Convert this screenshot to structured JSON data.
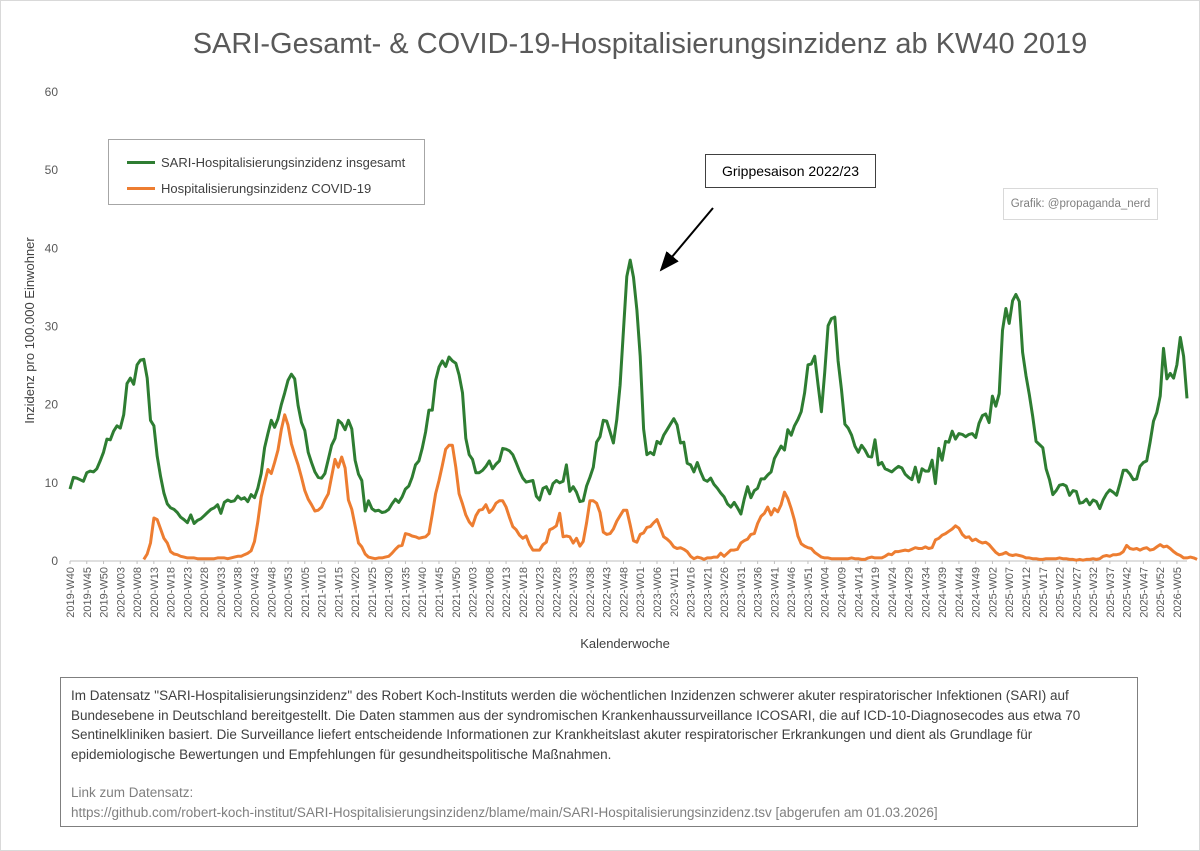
{
  "title": "SARI-Gesamt- & COVID-19-Hospitalisierungsinzidenz ab KW40 2019",
  "legend": {
    "items": [
      {
        "label": "SARI-Hospitalisierungsinzidenz insgesamt",
        "color": "#2e7d32"
      },
      {
        "label": "Hospitalisierungsinzidenz COVID-19",
        "color": "#ed7d31"
      }
    ]
  },
  "annotation": {
    "label": "Grippesaison 2022/23"
  },
  "credit": "Grafik: @propaganda_nerd",
  "description": {
    "text": "Im Datensatz \"SARI-Hospitalisierungsinzidenz\" des Robert Koch-Instituts werden die wöchentlichen Inzidenzen schwerer akuter respiratorischer Infektionen (SARI) auf Bundesebene in Deutschland bereitgestellt. Die Daten stammen aus der syndromischen Krankenhaussurveillance ICOSARI, die auf ICD-10-Diagnosecodes aus etwa 70 Sentinelkliniken basiert. Die Surveillance liefert entscheidende Informationen zur Krankheitslast akuter respiratorischer Erkrankungen und dient als Grundlage für epidemiologische Bewertungen und Empfehlungen für gesundheitspolitische Maßnahmen.",
    "link_label": "Link zum Datensatz:",
    "link": "https://github.com/robert-koch-institut/SARI-Hospitalisierungsinzidenz/blame/main/SARI-Hospitalisierungsinzidenz.tsv [abgerufen am 01.03.2026]"
  },
  "chart_data": {
    "type": "line",
    "title": "SARI-Gesamt- & COVID-19-Hospitalisierungsinzidenz ab KW40 2019",
    "xlabel": "Kalenderwoche",
    "ylabel": "Inzidenz pro 100.000 Einwohner",
    "ylim": [
      0,
      60
    ],
    "yticks": [
      0,
      10,
      20,
      30,
      40,
      50,
      60
    ],
    "x_start": "2019-W40",
    "x_end": "2026-W07",
    "x_tick_labels": [
      "2019-W40",
      "2019-W45",
      "2019-W50",
      "2020-W03",
      "2020-W08",
      "2020-W13",
      "2020-W18",
      "2020-W23",
      "2020-W28",
      "2020-W33",
      "2020-W38",
      "2020-W43",
      "2020-W48",
      "2020-W53",
      "2021-W05",
      "2021-W10",
      "2021-W15",
      "2021-W20",
      "2021-W25",
      "2021-W30",
      "2021-W35",
      "2021-W40",
      "2021-W45",
      "2021-W50",
      "2022-W03",
      "2022-W08",
      "2022-W13",
      "2022-W18",
      "2022-W23",
      "2022-W28",
      "2022-W33",
      "2022-W38",
      "2022-W43",
      "2022-W48",
      "2023-W01",
      "2023-W06",
      "2023-W11",
      "2023-W16",
      "2023-W21",
      "2023-W26",
      "2023-W31",
      "2023-W36",
      "2023-W41",
      "2023-W46",
      "2023-W51",
      "2024-W04",
      "2024-W09",
      "2024-W14",
      "2024-W19",
      "2024-W24",
      "2024-W29",
      "2024-W34",
      "2024-W39",
      "2024-W44",
      "2024-W49",
      "2025-W02",
      "2025-W07",
      "2025-W12",
      "2025-W17",
      "2025-W22",
      "2025-W27",
      "2025-W32",
      "2025-W37",
      "2025-W42",
      "2025-W47",
      "2025-W52",
      "2026-W05"
    ],
    "grid": false,
    "legend_position": "top-left",
    "series": [
      {
        "name": "SARI-Hospitalisierungsinzidenz insgesamt",
        "color": "#2e7d32",
        "values": [
          9.2,
          10.7,
          10.6,
          10.4,
          10.2,
          11.3,
          11.5,
          11.4,
          11.8,
          12.8,
          13.9,
          15.6,
          15.5,
          16.6,
          17.3,
          17,
          18.7,
          22.7,
          23.4,
          22.6,
          25.1,
          25.7,
          25.8,
          23.4,
          18,
          17.3,
          13.4,
          10.8,
          8.7,
          7.3,
          6.8,
          6.6,
          6.2,
          5.6,
          5.3,
          4.9,
          5.9,
          4.8,
          5.2,
          5.4,
          5.8,
          6.2,
          6.6,
          6.8,
          7.2,
          6.1,
          7.5,
          7.8,
          7.6,
          7.7,
          8.3,
          7.9,
          8.1,
          7.6,
          8.5,
          8.1,
          9.3,
          11.2,
          14.5,
          16.3,
          18,
          17.1,
          18.2,
          20,
          21.5,
          23.1,
          23.9,
          23.3,
          19.9,
          17.7,
          16.7,
          13.9,
          12.6,
          11.4,
          10.7,
          10.6,
          11.2,
          13,
          14.8,
          15.7,
          18,
          17.6,
          16.8,
          18,
          16.9,
          12.9,
          11.1,
          10.3,
          6.4,
          7.7,
          6.7,
          6.4,
          6.5,
          6.2,
          6.3,
          6.6,
          7.3,
          7.9,
          7.5,
          8.2,
          9.2,
          9.6,
          10.7,
          12.3,
          12.8,
          14.4,
          16.5,
          19.3,
          19.3,
          23.1,
          24.8,
          25.6,
          24.9,
          26.1,
          25.6,
          25.3,
          23.8,
          21.5,
          15.7,
          13.6,
          13,
          11.3,
          11.3,
          11.6,
          12.1,
          12.8,
          11.8,
          12.4,
          12.8,
          14.4,
          14.3,
          14.1,
          13.6,
          12.6,
          11.5,
          10.6,
          10.1,
          10.2,
          10.3,
          8.3,
          7.8,
          9.3,
          9.5,
          8.6,
          9.9,
          10.3,
          10,
          10.2,
          12.3,
          8.9,
          9.5,
          8.8,
          7.6,
          7.7,
          9.6,
          10.7,
          12,
          15.2,
          15.9,
          18,
          17.9,
          16.5,
          15.1,
          18.1,
          22.5,
          29.6,
          36.4,
          38.5,
          36.3,
          32.1,
          26.2,
          16.9,
          13.6,
          13.9,
          13.6,
          15.3,
          15,
          16.1,
          16.8,
          17.5,
          18.2,
          17.4,
          15.1,
          15.2,
          12.5,
          12.3,
          11.4,
          12.6,
          11.4,
          10.4,
          10.2,
          10.6,
          9.8,
          9.3,
          8.7,
          8.2,
          7.3,
          6.9,
          7.5,
          6.8,
          6,
          7.9,
          9.5,
          8.1,
          9,
          9.3,
          10.5,
          10.5,
          11,
          11.4,
          13.1,
          13.9,
          14.7,
          14.2,
          16.8,
          16.1,
          17.3,
          18.1,
          19.1,
          21.5,
          25.1,
          25.2,
          26.2,
          22.6,
          19.1,
          24.1,
          30.1,
          31,
          31.2,
          25.6,
          21.9,
          17.5,
          17,
          16.1,
          14.7,
          13.9,
          14.8,
          14.2,
          13.4,
          13.3,
          15.5,
          12.3,
          12.6,
          11.8,
          11.6,
          11.4,
          11.8,
          12.1,
          11.9,
          11.1,
          10.7,
          10.4,
          12,
          10.1,
          11.8,
          11.5,
          11.5,
          12.9,
          9.9,
          14.4,
          12.9,
          15.3,
          15.2,
          16.6,
          15.6,
          16.3,
          16.2,
          15.9,
          16.2,
          16.3,
          15.8,
          17.6,
          18.6,
          18.8,
          17.7,
          21.1,
          19.8,
          21.4,
          29.5,
          32.3,
          30.4,
          33.3,
          34.1,
          33.2,
          26.7,
          23.7,
          21.3,
          18.5,
          15.3,
          14.9,
          14.5,
          11.8,
          10.4,
          8.5,
          9,
          9.7,
          9.8,
          9.6,
          8.4,
          9,
          8.9,
          7.4,
          7.5,
          7.9,
          7.2,
          7.8,
          7.6,
          6.7,
          7.8,
          8.6,
          9.1,
          8.8,
          8.4,
          9.9,
          11.6,
          11.6,
          11.1,
          10.4,
          10.5,
          12.1,
          12.6,
          12.8,
          15.2,
          17.9,
          19,
          21.1,
          27.2,
          23.3,
          24,
          23.4,
          25.1,
          28.6,
          26.2,
          20.8
        ]
      },
      {
        "name": "Hospitalisierungsinzidenz COVID-19",
        "color": "#ed7d31",
        "start": "2020-W10",
        "values": [
          0.2,
          0.9,
          2.3,
          5.5,
          5.3,
          4.1,
          2.9,
          2.3,
          1.2,
          0.9,
          0.8,
          0.6,
          0.5,
          0.4,
          0.4,
          0.4,
          0.3,
          0.3,
          0.3,
          0.3,
          0.3,
          0.3,
          0.4,
          0.4,
          0.4,
          0.3,
          0.4,
          0.5,
          0.6,
          0.6,
          0.8,
          1,
          1.3,
          2.5,
          5,
          8.2,
          10,
          11.7,
          11.2,
          12.6,
          14.2,
          16.8,
          18.7,
          17.4,
          15,
          13.6,
          12.3,
          10.7,
          9,
          7.9,
          7.2,
          6.4,
          6.5,
          6.9,
          7.8,
          8.6,
          10.8,
          13,
          12,
          13.3,
          11.9,
          7.8,
          6.6,
          4.5,
          2.3,
          1.8,
          0.9,
          0.5,
          0.4,
          0.3,
          0.4,
          0.4,
          0.5,
          0.6,
          1,
          1.5,
          1.9,
          2,
          3.5,
          3.4,
          3.2,
          3.1,
          2.9,
          3,
          3.1,
          3.5,
          6,
          8.6,
          10.3,
          12.2,
          14.3,
          14.8,
          14.8,
          12,
          8.6,
          7.3,
          5.9,
          5,
          4.5,
          5.8,
          6.5,
          6.6,
          7.2,
          6.2,
          6.6,
          7.4,
          7.7,
          7.7,
          6.9,
          5.6,
          4.4,
          4,
          3.3,
          2.9,
          3.2,
          2.1,
          1.4,
          1.4,
          1.4,
          2.1,
          2.4,
          4,
          4.2,
          4.5,
          6.1,
          3.1,
          3.2,
          3.1,
          2.3,
          2.9,
          1.9,
          2.5,
          4.9,
          7.7,
          7.7,
          7.4,
          6.2,
          3.7,
          3.4,
          3.5,
          4.1,
          5.1,
          5.8,
          6.5,
          6.5,
          4.6,
          2.6,
          2.4,
          3.4,
          3.6,
          4.3,
          4.4,
          4.9,
          5.3,
          4.2,
          3.1,
          2.8,
          2.4,
          1.8,
          1.6,
          1.7,
          1.5,
          1.2,
          0.6,
          0.3,
          0.5,
          0.4,
          0.2,
          0.4,
          0.4,
          0.5,
          0.5,
          1,
          0.6,
          1,
          1.4,
          1.4,
          1.5,
          2.3,
          2.6,
          2.8,
          3.4,
          3.5,
          4.8,
          5.7,
          6.1,
          6.9,
          5.9,
          6.7,
          6.3,
          7.2,
          8.8,
          8,
          6.7,
          5.2,
          3.2,
          2.2,
          1.9,
          1.7,
          1.6,
          1.1,
          0.8,
          0.5,
          0.4,
          0.4,
          0.3,
          0.3,
          0.3,
          0.3,
          0.3,
          0.3,
          0.4,
          0.3,
          0.3,
          0.2,
          0.2,
          0.4,
          0.5,
          0.4,
          0.4,
          0.4,
          0.6,
          0.9,
          0.8,
          1.2,
          1.2,
          1.3,
          1.4,
          1.3,
          1.5,
          1.7,
          1.6,
          1.6,
          1.8,
          1.6,
          1.7,
          2.7,
          2.9,
          3.3,
          3.5,
          3.8,
          4.1,
          4.5,
          4.2,
          3.4,
          3,
          3.1,
          2.6,
          2.8,
          2.5,
          2.3,
          2.4,
          2.1,
          1.6,
          1.1,
          0.8,
          0.9,
          1.1,
          0.8,
          0.7,
          0.8,
          0.7,
          0.6,
          0.4,
          0.4,
          0.3,
          0.3,
          0.2,
          0.2,
          0.3,
          0.3,
          0.3,
          0.3,
          0.4,
          0.3,
          0.3,
          0.2,
          0.2,
          0.1,
          0.2,
          0.1,
          0.2,
          0.2,
          0.3,
          0.2,
          0.3,
          0.6,
          0.7,
          0.6,
          0.8,
          0.8,
          0.9,
          1.2,
          2,
          1.6,
          1.5,
          1.6,
          1.4,
          1.6,
          1.7,
          1.4,
          1.5,
          1.8,
          2.1,
          1.8,
          1.9,
          1.6,
          1.2,
          0.9,
          0.7,
          0.4,
          0.4,
          0.5,
          0.4,
          0.2
        ]
      }
    ]
  }
}
